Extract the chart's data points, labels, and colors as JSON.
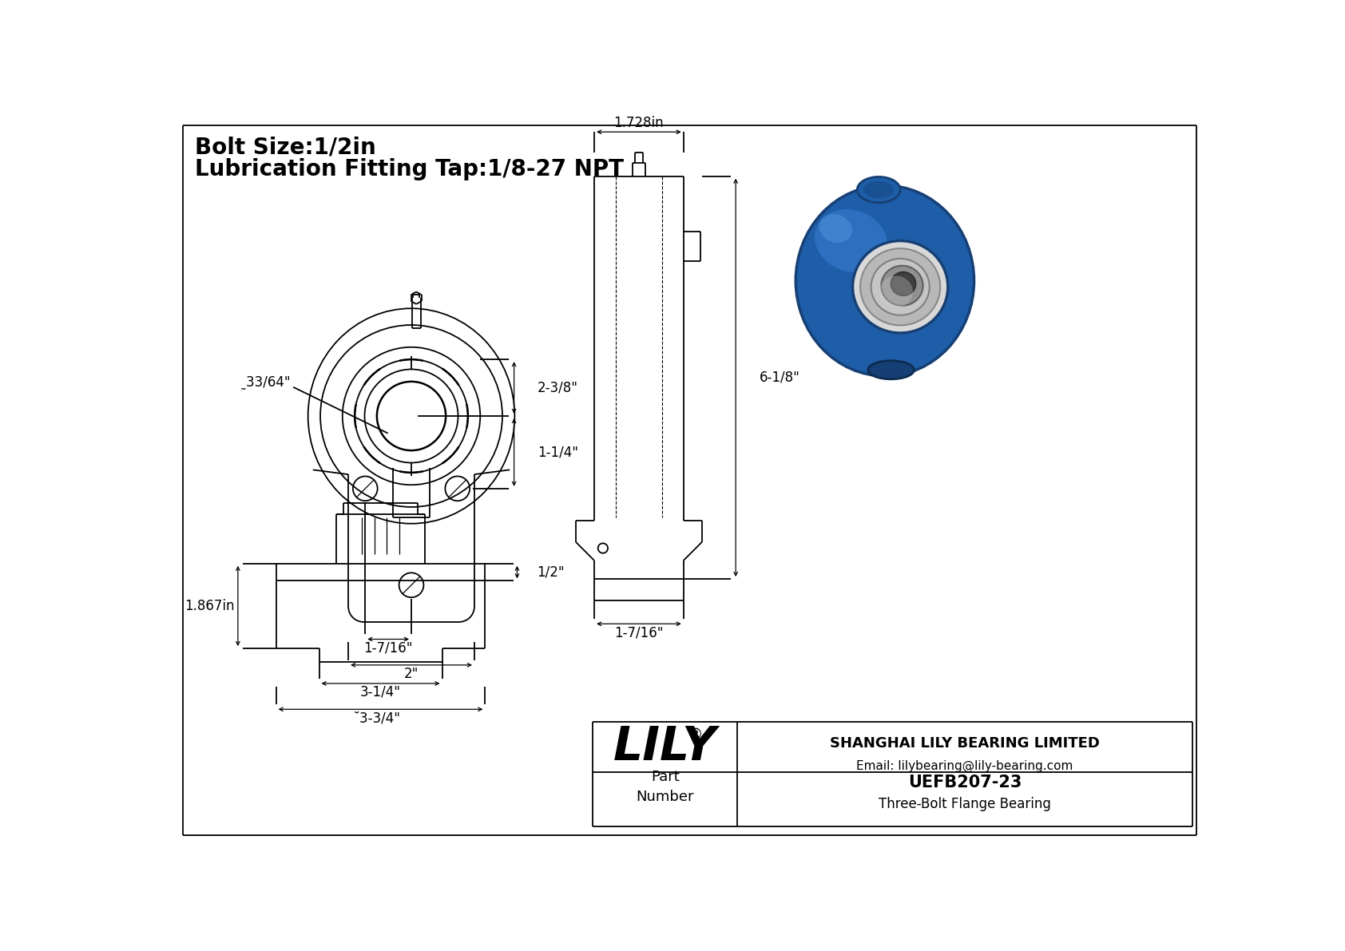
{
  "bg_color": "#ffffff",
  "line_color": "#000000",
  "title_line1": "Bolt Size:1/2in",
  "title_line2": "Lubrication Fitting Tap:1/8-27 NPT",
  "title_fontsize": 20,
  "dim_fontsize": 12,
  "company_name": "SHANGHAI LILY BEARING LIMITED",
  "company_email": "Email: lilybearing@lily-bearing.com",
  "part_number": "UEFB207-23",
  "part_desc": "Three-Bolt Flange Bearing",
  "logo_text": "LILY",
  "logo_registered": "®",
  "dims": {
    "bore_dia": "̰33/64\"",
    "bolt_circle_w": "1-7/16\"",
    "base_w": "2\"",
    "height_upper": "2-3/8\"",
    "height_lower": "1-1/4\"",
    "side_width": "1.728in",
    "side_height": "6-1/8\"",
    "side_base": "1-7/16\"",
    "front_width": "3-1/4\"",
    "bore_dia2": "̆3-3/4\"",
    "front_half": "1.867in",
    "top_height": "1/2\""
  }
}
